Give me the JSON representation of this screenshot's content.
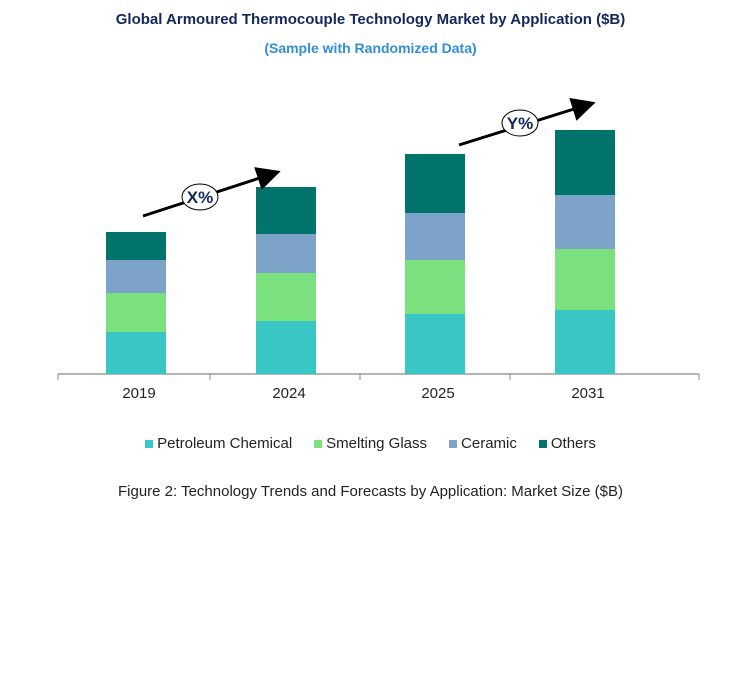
{
  "chart_data": {
    "type": "bar",
    "stacked": true,
    "title": "Global Armoured Thermocouple Technology Market by Application ($B)",
    "subtitle": "(Sample with Randomized Data)",
    "categories": [
      "2019",
      "2024",
      "2025",
      "2031"
    ],
    "series": [
      {
        "name": "Petroleum Chemical",
        "color": "#38c7c4",
        "values": [
          4.2,
          5.3,
          6.0,
          6.4
        ]
      },
      {
        "name": "Smelting Glass",
        "color": "#7be07e",
        "values": [
          3.9,
          4.8,
          5.4,
          6.1
        ]
      },
      {
        "name": "Ceramic",
        "color": "#7ea3c8",
        "values": [
          3.3,
          3.9,
          4.7,
          5.4
        ]
      },
      {
        "name": "Others",
        "color": "#00736b",
        "values": [
          2.8,
          4.7,
          5.9,
          6.5
        ]
      }
    ],
    "annotations": [
      "X%",
      "Y%"
    ],
    "xlabel": "",
    "ylabel": "",
    "y_axis_shown": false,
    "grid": false,
    "legend_position": "bottom",
    "caption": "Figure 2: Technology  Trends  and Forecasts by Application: Market Size ($B)"
  }
}
